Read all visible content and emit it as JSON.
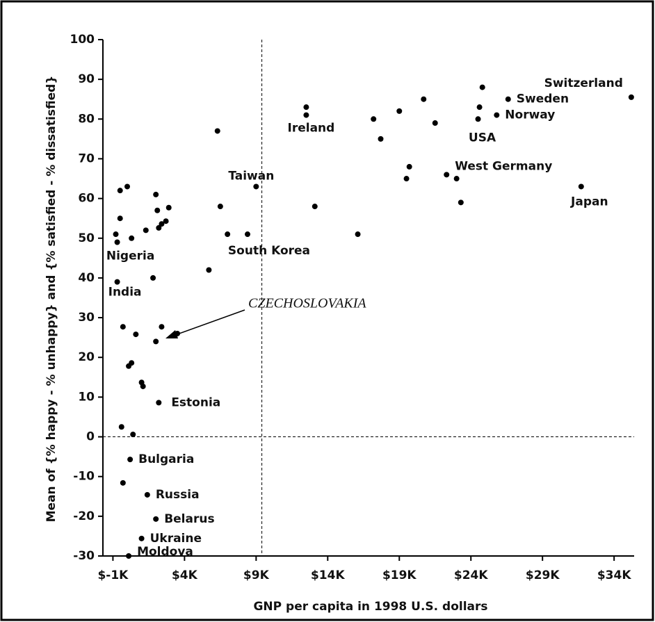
{
  "chart_data": {
    "type": "scatter",
    "x_label": "GNP per capita in 1998 U.S. dollars",
    "y_label": "Mean of {% happy - % unhappy} and {% satisfied - % dissatisfied}",
    "annotation": "CZECHOSLOVAKIA",
    "color": "#000000",
    "xlim": [
      -1.7,
      35.4
    ],
    "ylim": [
      -30,
      100
    ],
    "xticks": [
      {
        "value": -1,
        "label": "$-1K"
      },
      {
        "value": 4,
        "label": "$4K"
      },
      {
        "value": 9,
        "label": "$9K"
      },
      {
        "value": 14,
        "label": "$14K"
      },
      {
        "value": 19,
        "label": "$19K"
      },
      {
        "value": 24,
        "label": "$24K"
      },
      {
        "value": 29,
        "label": "$29K"
      },
      {
        "value": 34,
        "label": "$34K"
      }
    ],
    "yticks": [
      -30,
      -20,
      -10,
      0,
      10,
      20,
      30,
      40,
      50,
      60,
      70,
      80,
      90,
      100
    ],
    "reference_lines": {
      "x": 9.4,
      "y": 0
    },
    "x": [
      35.2,
      26.6,
      25.8,
      24.5,
      24.6,
      24.8,
      22.3,
      31.7,
      23.0,
      23.3,
      12.5,
      12.5,
      17.2,
      17.7,
      19.0,
      20.7,
      21.5,
      19.7,
      19.5,
      16.1,
      13.1,
      9.0,
      8.4,
      7.0,
      6.5,
      6.3,
      5.7,
      3.5,
      -0.8,
      -0.7,
      -0.5,
      0,
      -0.5,
      0.3,
      2.0,
      2.1,
      1.3,
      2.2,
      2.4,
      2.7,
      2.9,
      1.8,
      -0.7,
      -0.3,
      2.4,
      0.6,
      2.0,
      0.1,
      0.3,
      1.0,
      1.1,
      2.2,
      -0.4,
      0.4,
      0.2,
      -0.3,
      1.4,
      2.0,
      1.0,
      0.1
    ],
    "y": [
      85.5,
      85,
      81,
      80,
      83,
      88,
      66,
      63,
      65,
      59,
      81,
      83,
      80,
      75,
      82,
      85,
      79,
      68,
      65,
      51,
      58,
      63,
      51,
      51,
      58,
      77,
      42,
      26,
      51,
      49,
      62,
      63,
      55,
      50,
      61,
      57,
      52,
      52.6,
      53.6,
      54.3,
      57.7,
      40,
      39,
      27.7,
      27.7,
      25.8,
      24,
      17.8,
      18.6,
      13.7,
      12.7,
      8.6,
      2.5,
      0.6,
      -5.7,
      -11.6,
      -14.6,
      -20.7,
      -25.6,
      -30
    ],
    "labels": [
      "Switzerland",
      "Sweden",
      "Norway",
      "USA",
      null,
      null,
      "West Germany",
      "Japan",
      null,
      null,
      "Ireland",
      null,
      null,
      null,
      null,
      null,
      null,
      null,
      null,
      null,
      null,
      "Taiwan",
      "South Korea",
      null,
      null,
      null,
      null,
      null,
      null,
      "Nigeria",
      null,
      null,
      null,
      null,
      null,
      null,
      null,
      null,
      null,
      null,
      null,
      null,
      "India",
      null,
      null,
      null,
      null,
      null,
      null,
      null,
      null,
      "Estonia",
      null,
      null,
      "Bulgaria",
      null,
      "Russia",
      "Belarus",
      "Ukraine",
      "Moldova"
    ]
  }
}
